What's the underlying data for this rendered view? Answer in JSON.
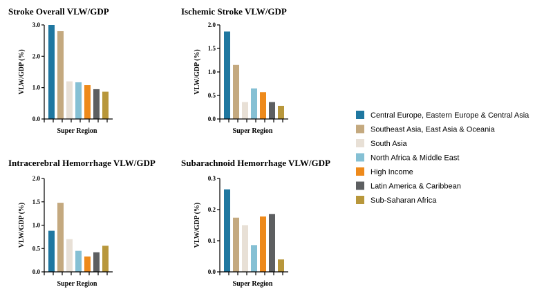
{
  "chart_data": {
    "type": "bar",
    "legend_position": "right",
    "series": [
      {
        "name": "Central Europe, Eastern Europe & Central Asia",
        "color": "#1f77a0"
      },
      {
        "name": "Southeast Asia, East Asia & Oceania",
        "color": "#c4a97f"
      },
      {
        "name": "South Asia",
        "color": "#e8e0d6"
      },
      {
        "name": "North Africa & Middle East",
        "color": "#85c0d4"
      },
      {
        "name": "High Income",
        "color": "#ee8a1b"
      },
      {
        "name": "Latin America & Caribbean",
        "color": "#5d5f61"
      },
      {
        "name": "Sub-Saharan Africa",
        "color": "#b8973b"
      }
    ],
    "charts": [
      {
        "title": "Stroke Overall VLW/GDP",
        "xlabel": "Super Region",
        "ylabel": "VLW/GDP (%)",
        "ylim": [
          0,
          3.0
        ],
        "yticks": [
          "0.0",
          "1.0",
          "2.0",
          "3.0"
        ],
        "values": [
          3.0,
          2.8,
          1.2,
          1.17,
          1.08,
          0.95,
          0.87
        ]
      },
      {
        "title": "Ischemic Stroke VLW/GDP",
        "xlabel": "Super Region",
        "ylabel": "VLW/GDP (%)",
        "ylim": [
          0,
          2.0
        ],
        "yticks": [
          "0.0",
          "0.5",
          "1.0",
          "1.5",
          "2.0"
        ],
        "values": [
          1.86,
          1.15,
          0.36,
          0.65,
          0.57,
          0.36,
          0.28
        ]
      },
      {
        "title": "Intracerebral Hemorrhage VLW/GDP",
        "xlabel": "Super Region",
        "ylabel": "VLW/GDP (%)",
        "ylim": [
          0,
          2.0
        ],
        "yticks": [
          "0.0",
          "0.5",
          "1.0",
          "1.5",
          "2.0"
        ],
        "values": [
          0.88,
          1.48,
          0.7,
          0.45,
          0.33,
          0.42,
          0.56
        ]
      },
      {
        "title": "Subarachnoid Hemorrhage VLW/GDP",
        "xlabel": "Super Region",
        "ylabel": "VLW/GDP (%)",
        "ylim": [
          0,
          0.3
        ],
        "yticks": [
          "0.0",
          "0.1",
          "0.2",
          "0.3"
        ],
        "values": [
          0.265,
          0.174,
          0.15,
          0.086,
          0.178,
          0.186,
          0.04
        ]
      }
    ]
  }
}
